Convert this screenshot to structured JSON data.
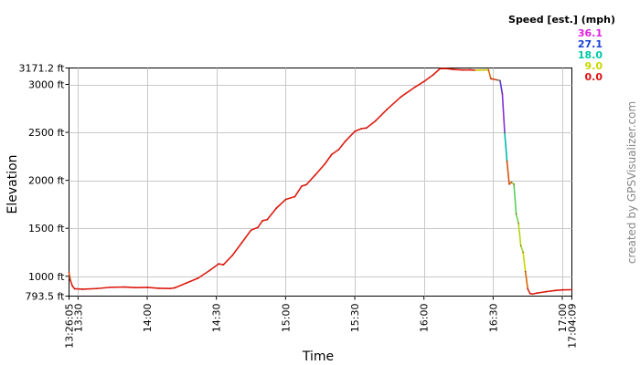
{
  "chart_data": {
    "type": "line",
    "title": "",
    "xlabel": "Time",
    "ylabel": "Elevation",
    "x_start": "13:26:05",
    "x_end": "17:04:09",
    "x_ticks": [
      "13:26:05",
      "13:30",
      "14:00",
      "14:30",
      "15:00",
      "15:30",
      "16:00",
      "16:30",
      "17:00",
      "17:04:09"
    ],
    "x_gridlines": [
      "13:30",
      "14:00",
      "14:30",
      "15:00",
      "15:30",
      "16:00",
      "16:30",
      "17:00"
    ],
    "y_ticks": [
      {
        "value": 793.5,
        "label": "793.5 ft"
      },
      {
        "value": 1000,
        "label": "1000 ft"
      },
      {
        "value": 1500,
        "label": "1500 ft"
      },
      {
        "value": 2000,
        "label": "2000 ft"
      },
      {
        "value": 2500,
        "label": "2500 ft"
      },
      {
        "value": 3000,
        "label": "3000 ft"
      },
      {
        "value": 3171.2,
        "label": "3171.2 ft"
      }
    ],
    "ylim": [
      793.5,
      3171.2
    ],
    "grid": true,
    "legend": {
      "title": "Speed [est.] (mph)",
      "placement": "top-right",
      "entries": [
        {
          "label": "36.1",
          "color": "#e020e0"
        },
        {
          "label": "27.1",
          "color": "#1a3fd6"
        },
        {
          "label": "18.0",
          "color": "#00c8a8"
        },
        {
          "label": "9.0",
          "color": "#c8d800"
        },
        {
          "label": "0.0",
          "color": "#e01010"
        }
      ]
    },
    "series": [
      {
        "points": [
          [
            "13:26:05",
            1040
          ],
          [
            "13:26:40",
            960
          ],
          [
            "13:27:30",
            900
          ],
          [
            "13:28:30",
            870
          ],
          [
            "13:32",
            865
          ],
          [
            "13:38",
            872
          ],
          [
            "13:44",
            885
          ],
          [
            "13:50",
            888
          ],
          [
            "13:55",
            882
          ],
          [
            "14:00",
            884
          ],
          [
            "14:05",
            875
          ],
          [
            "14:10",
            873
          ],
          [
            "14:12",
            880
          ],
          [
            "14:17",
            930
          ],
          [
            "14:22",
            980
          ],
          [
            "14:27",
            1060
          ],
          [
            "14:31",
            1130
          ],
          [
            "14:33",
            1120
          ],
          [
            "14:37",
            1220
          ],
          [
            "14:41",
            1350
          ],
          [
            "14:45",
            1480
          ],
          [
            "14:48",
            1510
          ],
          [
            "14:50",
            1580
          ],
          [
            "14:52",
            1590
          ],
          [
            "14:56",
            1710
          ],
          [
            "15:00",
            1800
          ],
          [
            "15:04",
            1830
          ],
          [
            "15:07",
            1940
          ],
          [
            "15:09",
            1955
          ],
          [
            "15:13",
            2060
          ],
          [
            "15:17",
            2170
          ],
          [
            "15:20",
            2270
          ],
          [
            "15:23",
            2320
          ],
          [
            "15:26",
            2410
          ],
          [
            "15:30",
            2510
          ],
          [
            "15:33",
            2540
          ],
          [
            "15:35",
            2545
          ],
          [
            "15:39",
            2620
          ],
          [
            "15:44",
            2740
          ],
          [
            "15:50",
            2870
          ],
          [
            "15:56",
            2970
          ],
          [
            "16:00",
            3030
          ],
          [
            "16:04",
            3100
          ],
          [
            "16:07",
            3165
          ],
          [
            "16:10",
            3165
          ],
          [
            "16:13",
            3155
          ],
          [
            "16:17",
            3150
          ],
          [
            "16:20",
            3152
          ],
          [
            "16:22",
            3148
          ],
          [
            "16:28",
            3152
          ],
          [
            "16:29",
            3060
          ],
          [
            "16:32",
            3045
          ],
          [
            "16:33",
            3040
          ],
          [
            "16:34",
            2900
          ],
          [
            "16:35",
            2500
          ],
          [
            "16:36",
            2200
          ],
          [
            "16:37",
            1960
          ],
          [
            "16:38",
            1980
          ],
          [
            "16:39",
            1960
          ],
          [
            "16:40",
            1650
          ],
          [
            "16:41",
            1550
          ],
          [
            "16:42",
            1320
          ],
          [
            "16:43",
            1250
          ],
          [
            "16:44",
            1050
          ],
          [
            "16:45",
            870
          ],
          [
            "16:46",
            820
          ],
          [
            "16:47",
            815
          ],
          [
            "16:49",
            825
          ],
          [
            "16:53",
            840
          ],
          [
            "16:57",
            852
          ],
          [
            "17:00",
            858
          ],
          [
            "17:04:09",
            860
          ]
        ],
        "speed_mph": [
          0,
          3,
          1,
          0.5,
          0.5,
          0.5,
          0.5,
          0.5,
          0.5,
          0.5,
          0.5,
          0.5,
          0.5,
          0.5,
          0.5,
          0.5,
          0.5,
          0.5,
          0.5,
          0.5,
          0.5,
          0.5,
          0.5,
          0.5,
          0.5,
          0.5,
          0.5,
          0.5,
          0.5,
          0.5,
          0.5,
          0.5,
          0.5,
          0.5,
          0.5,
          0.5,
          0.5,
          0.5,
          0.5,
          0.5,
          0.5,
          0.5,
          0.5,
          0.5,
          0.5,
          0.5,
          0.5,
          0.5,
          0.5,
          8,
          4,
          2,
          16,
          30,
          32,
          19,
          3,
          4,
          12,
          14,
          13,
          10,
          11,
          9,
          4,
          1,
          0.5,
          0.5,
          0.5,
          0.5,
          0.5,
          0.5
        ]
      }
    ]
  },
  "credit": "created by GPSVisualizer.com"
}
